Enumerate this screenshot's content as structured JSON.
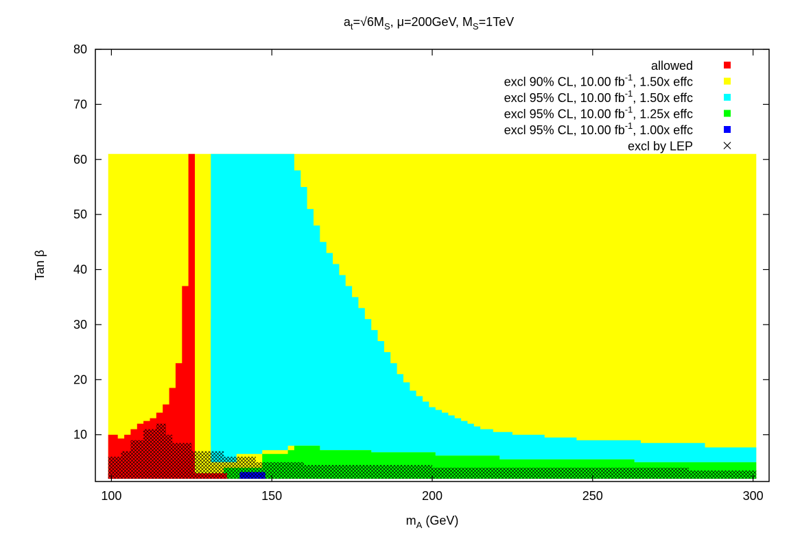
{
  "chart_data": {
    "type": "heatmap",
    "title": {
      "pre": "a",
      "pre_sub": "t",
      "mid": "=√6M",
      "mid_sub": "S",
      "rest": ", μ=200GeV, M",
      "rest_sub": "S",
      "end": "=1TeV"
    },
    "xlabel": {
      "main": "m",
      "sub": "A",
      "rest": " (GeV)"
    },
    "ylabel": "Tan β",
    "xlim": [
      95,
      305
    ],
    "ylim": [
      1.5,
      80
    ],
    "xticks": [
      100,
      150,
      200,
      250,
      300
    ],
    "yticks": [
      10,
      20,
      30,
      40,
      50,
      60,
      70,
      80
    ],
    "grid": false,
    "legend_position": "top-right",
    "legend": [
      {
        "key": "allowed",
        "parts": [
          "allowed"
        ],
        "color": "#ff0000",
        "marker": "square"
      },
      {
        "key": "excl90_150",
        "parts": [
          "excl 90% CL, 10.00 fb",
          "-1",
          ", 1.50x effc"
        ],
        "color": "#ffff00",
        "marker": "square"
      },
      {
        "key": "excl95_150",
        "parts": [
          "excl 95% CL, 10.00 fb",
          "-1",
          ", 1.50x effc"
        ],
        "color": "#00ffff",
        "marker": "square"
      },
      {
        "key": "excl95_125",
        "parts": [
          "excl 95% CL, 10.00 fb",
          "-1",
          ", 1.25x effc"
        ],
        "color": "#00ff00",
        "marker": "square"
      },
      {
        "key": "excl95_100",
        "parts": [
          "excl 95% CL, 10.00 fb",
          "-1",
          ", 1.00x effc"
        ],
        "color": "#0000ff",
        "marker": "square"
      },
      {
        "key": "lep",
        "parts": [
          "excl by LEP"
        ],
        "color": "#000000",
        "marker": "cross"
      }
    ],
    "regions": {
      "yellow_domain": {
        "x": [
          99,
          301
        ],
        "y": [
          2,
          61
        ]
      },
      "red_left": [
        [
          99,
          10
        ],
        [
          102,
          10
        ],
        [
          102,
          9.3
        ],
        [
          104,
          9.3
        ],
        [
          104,
          10
        ],
        [
          106,
          10
        ],
        [
          106,
          11
        ],
        [
          108,
          11
        ],
        [
          108,
          12
        ],
        [
          110,
          12
        ],
        [
          110,
          12.5
        ],
        [
          112,
          12.5
        ],
        [
          112,
          13
        ],
        [
          114,
          13
        ],
        [
          114,
          14
        ],
        [
          116,
          14
        ],
        [
          116,
          15.5
        ],
        [
          118,
          15.5
        ],
        [
          118,
          18.5
        ],
        [
          120,
          18.5
        ],
        [
          120,
          23
        ],
        [
          122,
          23
        ],
        [
          122,
          37
        ],
        [
          124,
          37
        ],
        [
          124,
          61
        ],
        [
          126,
          61
        ],
        [
          126,
          3
        ],
        [
          125,
          3
        ],
        [
          125,
          2
        ],
        [
          99,
          2
        ]
      ],
      "red_strip": [
        [
          99,
          2
        ],
        [
          136,
          2
        ],
        [
          136,
          3
        ],
        [
          99,
          3
        ]
      ],
      "cyan_main": [
        [
          131,
          5
        ],
        [
          131,
          61
        ],
        [
          157,
          61
        ],
        [
          157,
          58
        ],
        [
          159,
          58
        ],
        [
          159,
          55
        ],
        [
          161,
          55
        ],
        [
          161,
          51
        ],
        [
          163,
          51
        ],
        [
          163,
          48
        ],
        [
          165,
          48
        ],
        [
          165,
          45
        ],
        [
          167,
          45
        ],
        [
          167,
          43
        ],
        [
          169,
          43
        ],
        [
          169,
          41
        ],
        [
          171,
          41
        ],
        [
          171,
          39
        ],
        [
          173,
          39
        ],
        [
          173,
          37
        ],
        [
          175,
          37
        ],
        [
          175,
          35
        ],
        [
          177,
          35
        ],
        [
          177,
          33
        ],
        [
          179,
          33
        ],
        [
          179,
          31
        ],
        [
          181,
          31
        ],
        [
          181,
          29
        ],
        [
          183,
          29
        ],
        [
          183,
          27
        ],
        [
          185,
          27
        ],
        [
          185,
          25
        ],
        [
          187,
          25
        ],
        [
          187,
          23
        ],
        [
          189,
          23
        ],
        [
          189,
          21
        ],
        [
          191,
          21
        ],
        [
          191,
          19.5
        ],
        [
          193,
          19.5
        ],
        [
          193,
          18
        ],
        [
          195,
          18
        ],
        [
          195,
          17
        ],
        [
          197,
          17
        ],
        [
          197,
          16
        ],
        [
          199,
          16
        ],
        [
          199,
          15
        ],
        [
          201,
          15
        ],
        [
          201,
          14.5
        ],
        [
          203,
          14.5
        ],
        [
          203,
          14
        ],
        [
          205,
          14
        ],
        [
          205,
          13.5
        ],
        [
          207,
          13.5
        ],
        [
          207,
          13
        ],
        [
          209,
          13
        ],
        [
          209,
          12.5
        ],
        [
          211,
          12.5
        ],
        [
          211,
          12
        ],
        [
          213,
          12
        ],
        [
          213,
          11.5
        ],
        [
          215,
          11.5
        ],
        [
          215,
          11
        ],
        [
          219,
          11
        ],
        [
          219,
          10.5
        ],
        [
          225,
          10.5
        ],
        [
          225,
          10
        ],
        [
          235,
          10
        ],
        [
          235,
          9.5
        ],
        [
          245,
          9.5
        ],
        [
          245,
          9
        ],
        [
          265,
          9
        ],
        [
          265,
          8.5
        ],
        [
          285,
          8.5
        ],
        [
          285,
          7.7
        ],
        [
          301,
          7.7
        ],
        [
          301,
          5
        ],
        [
          263,
          5
        ],
        [
          263,
          5.5
        ],
        [
          221,
          5.5
        ],
        [
          221,
          6.2
        ],
        [
          201,
          6.2
        ],
        [
          201,
          6.8
        ],
        [
          181,
          6.8
        ],
        [
          181,
          7.2
        ],
        [
          165,
          7.2
        ],
        [
          165,
          8
        ],
        [
          155,
          8
        ],
        [
          155,
          7.2
        ],
        [
          147,
          7.2
        ],
        [
          147,
          6.5
        ],
        [
          139,
          6.5
        ],
        [
          139,
          5
        ],
        [
          131,
          5
        ]
      ],
      "cyan_notch": [
        [
          131,
          31
        ],
        [
          133,
          31
        ],
        [
          133,
          8
        ],
        [
          131,
          8
        ]
      ],
      "green_main": [
        [
          147,
          2
        ],
        [
          147,
          6.5
        ],
        [
          155,
          6.5
        ],
        [
          155,
          7.2
        ],
        [
          157,
          7.2
        ],
        [
          157,
          8
        ],
        [
          165,
          8
        ],
        [
          165,
          7.2
        ],
        [
          181,
          7.2
        ],
        [
          181,
          6.8
        ],
        [
          201,
          6.8
        ],
        [
          201,
          6.2
        ],
        [
          221,
          6.2
        ],
        [
          221,
          5.5
        ],
        [
          263,
          5.5
        ],
        [
          263,
          5
        ],
        [
          301,
          5
        ],
        [
          301,
          2
        ],
        [
          147,
          2
        ]
      ],
      "green_left": [
        [
          135,
          2
        ],
        [
          135,
          4
        ],
        [
          147,
          4
        ],
        [
          147,
          2
        ]
      ],
      "blue": [
        [
          140,
          2
        ],
        [
          148,
          2
        ],
        [
          148,
          3.2
        ],
        [
          140,
          3.2
        ]
      ],
      "lep_region": [
        [
          99,
          2
        ],
        [
          99,
          6
        ],
        [
          103,
          6
        ],
        [
          103,
          7
        ],
        [
          106,
          7
        ],
        [
          106,
          9
        ],
        [
          110,
          9
        ],
        [
          110,
          11
        ],
        [
          114,
          11
        ],
        [
          114,
          12
        ],
        [
          117,
          12
        ],
        [
          117,
          10
        ],
        [
          119,
          10
        ],
        [
          119,
          8.5
        ],
        [
          125,
          8.5
        ],
        [
          125,
          7
        ],
        [
          135,
          7
        ],
        [
          135,
          6
        ],
        [
          145,
          6
        ],
        [
          145,
          5
        ],
        [
          160,
          5
        ],
        [
          160,
          4.5
        ],
        [
          200,
          4.5
        ],
        [
          200,
          4
        ],
        [
          280,
          4
        ],
        [
          280,
          3.5
        ],
        [
          301,
          3.5
        ],
        [
          301,
          2
        ]
      ]
    }
  }
}
